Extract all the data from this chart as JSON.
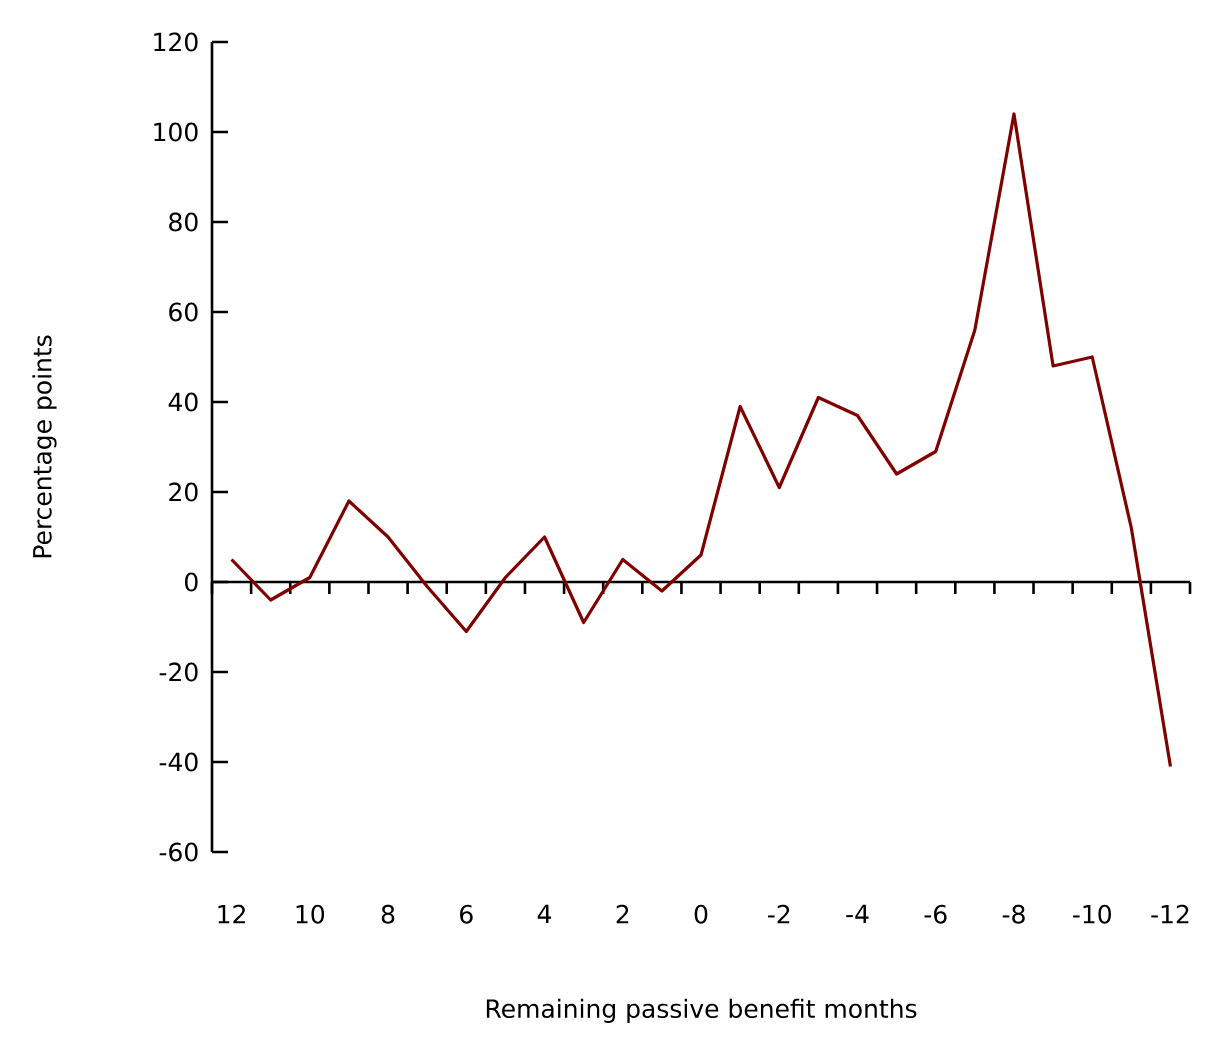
{
  "chart_data": {
    "type": "line",
    "xlabel": "Remaining passive benefit months",
    "ylabel": "Percentage points",
    "categories": [
      "12",
      null,
      "10",
      null,
      "8",
      null,
      "6",
      null,
      "4",
      null,
      "2",
      null,
      "0",
      null,
      "-2",
      null,
      "-4",
      null,
      "-6",
      null,
      "-8",
      null,
      "-10",
      null,
      "-12"
    ],
    "series": [
      {
        "color": "#800000",
        "values": [
          5,
          -4,
          1,
          18,
          10,
          -1,
          -11,
          1,
          10,
          -9,
          5,
          -2,
          6,
          39,
          21,
          41,
          37,
          24,
          29,
          56,
          104,
          48,
          50,
          12,
          -41
        ]
      }
    ],
    "ylim": [
      -60,
      120
    ],
    "yticks": [
      -60,
      -40,
      -20,
      0,
      20,
      40,
      60,
      80,
      100,
      120
    ],
    "legend": false,
    "marker": "none",
    "line_style": "solid"
  }
}
